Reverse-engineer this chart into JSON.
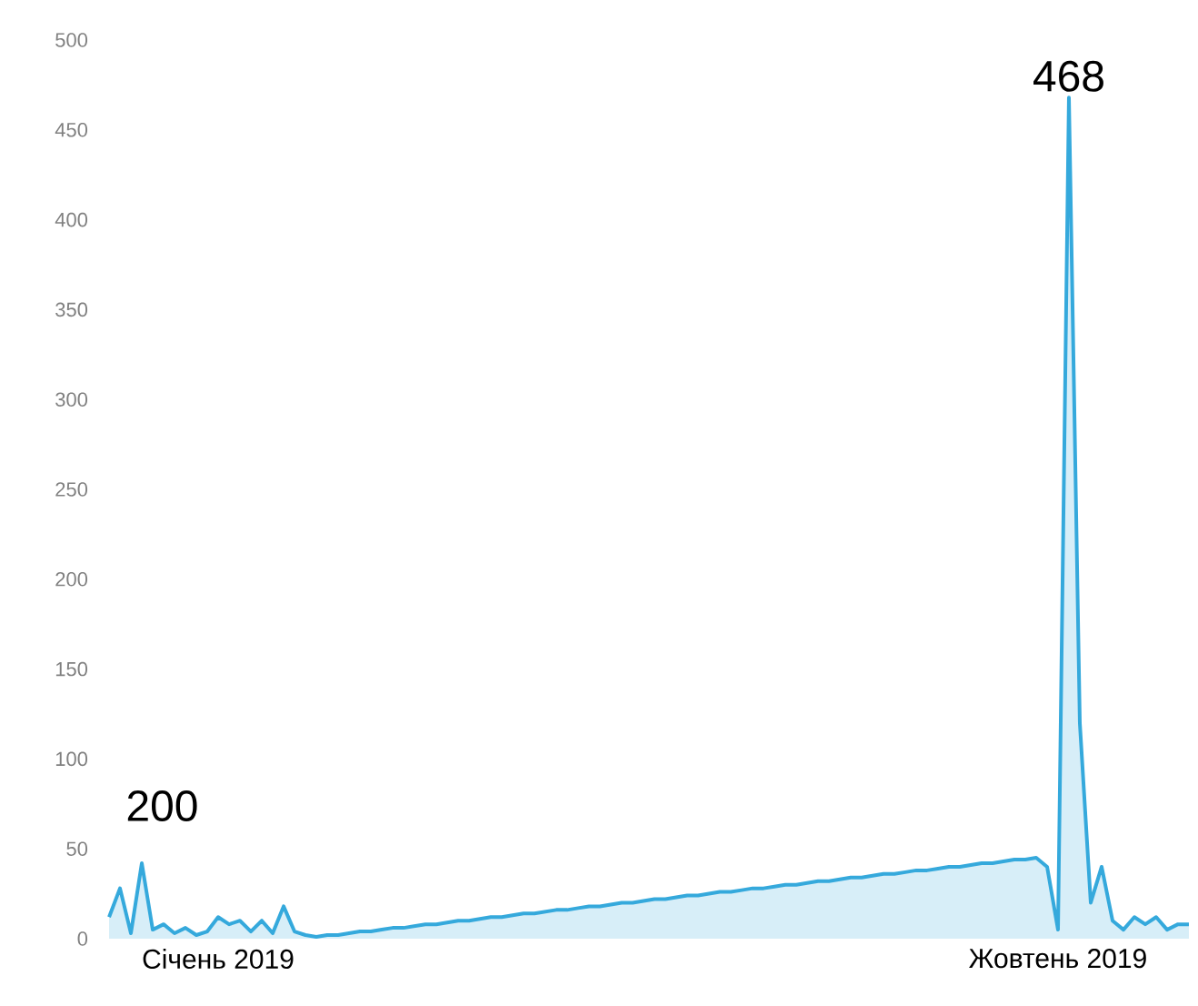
{
  "chart_data": {
    "type": "area",
    "categories": [
      null,
      null,
      null,
      null,
      null,
      null,
      null,
      null,
      null,
      null,
      "Січень 2019",
      null,
      null,
      null,
      null,
      null,
      null,
      null,
      null,
      null,
      null,
      null,
      null,
      null,
      null,
      null,
      null,
      null,
      null,
      null,
      null,
      null,
      null,
      null,
      null,
      null,
      null,
      null,
      null,
      null,
      null,
      null,
      null,
      null,
      null,
      null,
      null,
      null,
      null,
      null,
      null,
      null,
      null,
      null,
      null,
      null,
      null,
      null,
      null,
      null,
      null,
      null,
      null,
      null,
      null,
      null,
      null,
      null,
      null,
      null,
      null,
      null,
      null,
      null,
      null,
      null,
      null,
      null,
      null,
      null,
      null,
      null,
      null,
      null,
      null,
      null,
      null,
      "Жовтень 2019",
      null,
      null,
      null,
      null,
      null,
      null,
      null,
      null,
      null,
      null,
      null,
      null
    ],
    "values": [
      12,
      28,
      3,
      42,
      5,
      8,
      3,
      6,
      2,
      4,
      12,
      8,
      10,
      4,
      10,
      3,
      18,
      4,
      2,
      1,
      2,
      2,
      3,
      4,
      4,
      5,
      6,
      6,
      7,
      8,
      8,
      9,
      10,
      10,
      11,
      12,
      12,
      13,
      14,
      14,
      15,
      16,
      16,
      17,
      18,
      18,
      19,
      20,
      20,
      21,
      22,
      22,
      23,
      24,
      24,
      25,
      26,
      26,
      27,
      28,
      28,
      29,
      30,
      30,
      31,
      32,
      32,
      33,
      34,
      34,
      35,
      36,
      36,
      37,
      38,
      38,
      39,
      40,
      40,
      41,
      42,
      42,
      43,
      44,
      44,
      45,
      40,
      5,
      468,
      120,
      20,
      40,
      10,
      5,
      12,
      8,
      12,
      5,
      8,
      8
    ],
    "color": "#35a9dc",
    "ylim": [
      0,
      500
    ],
    "yticks": [
      0,
      50,
      100,
      150,
      200,
      250,
      300,
      350,
      400,
      450,
      500
    ],
    "annotations": [
      "200",
      "468"
    ]
  }
}
